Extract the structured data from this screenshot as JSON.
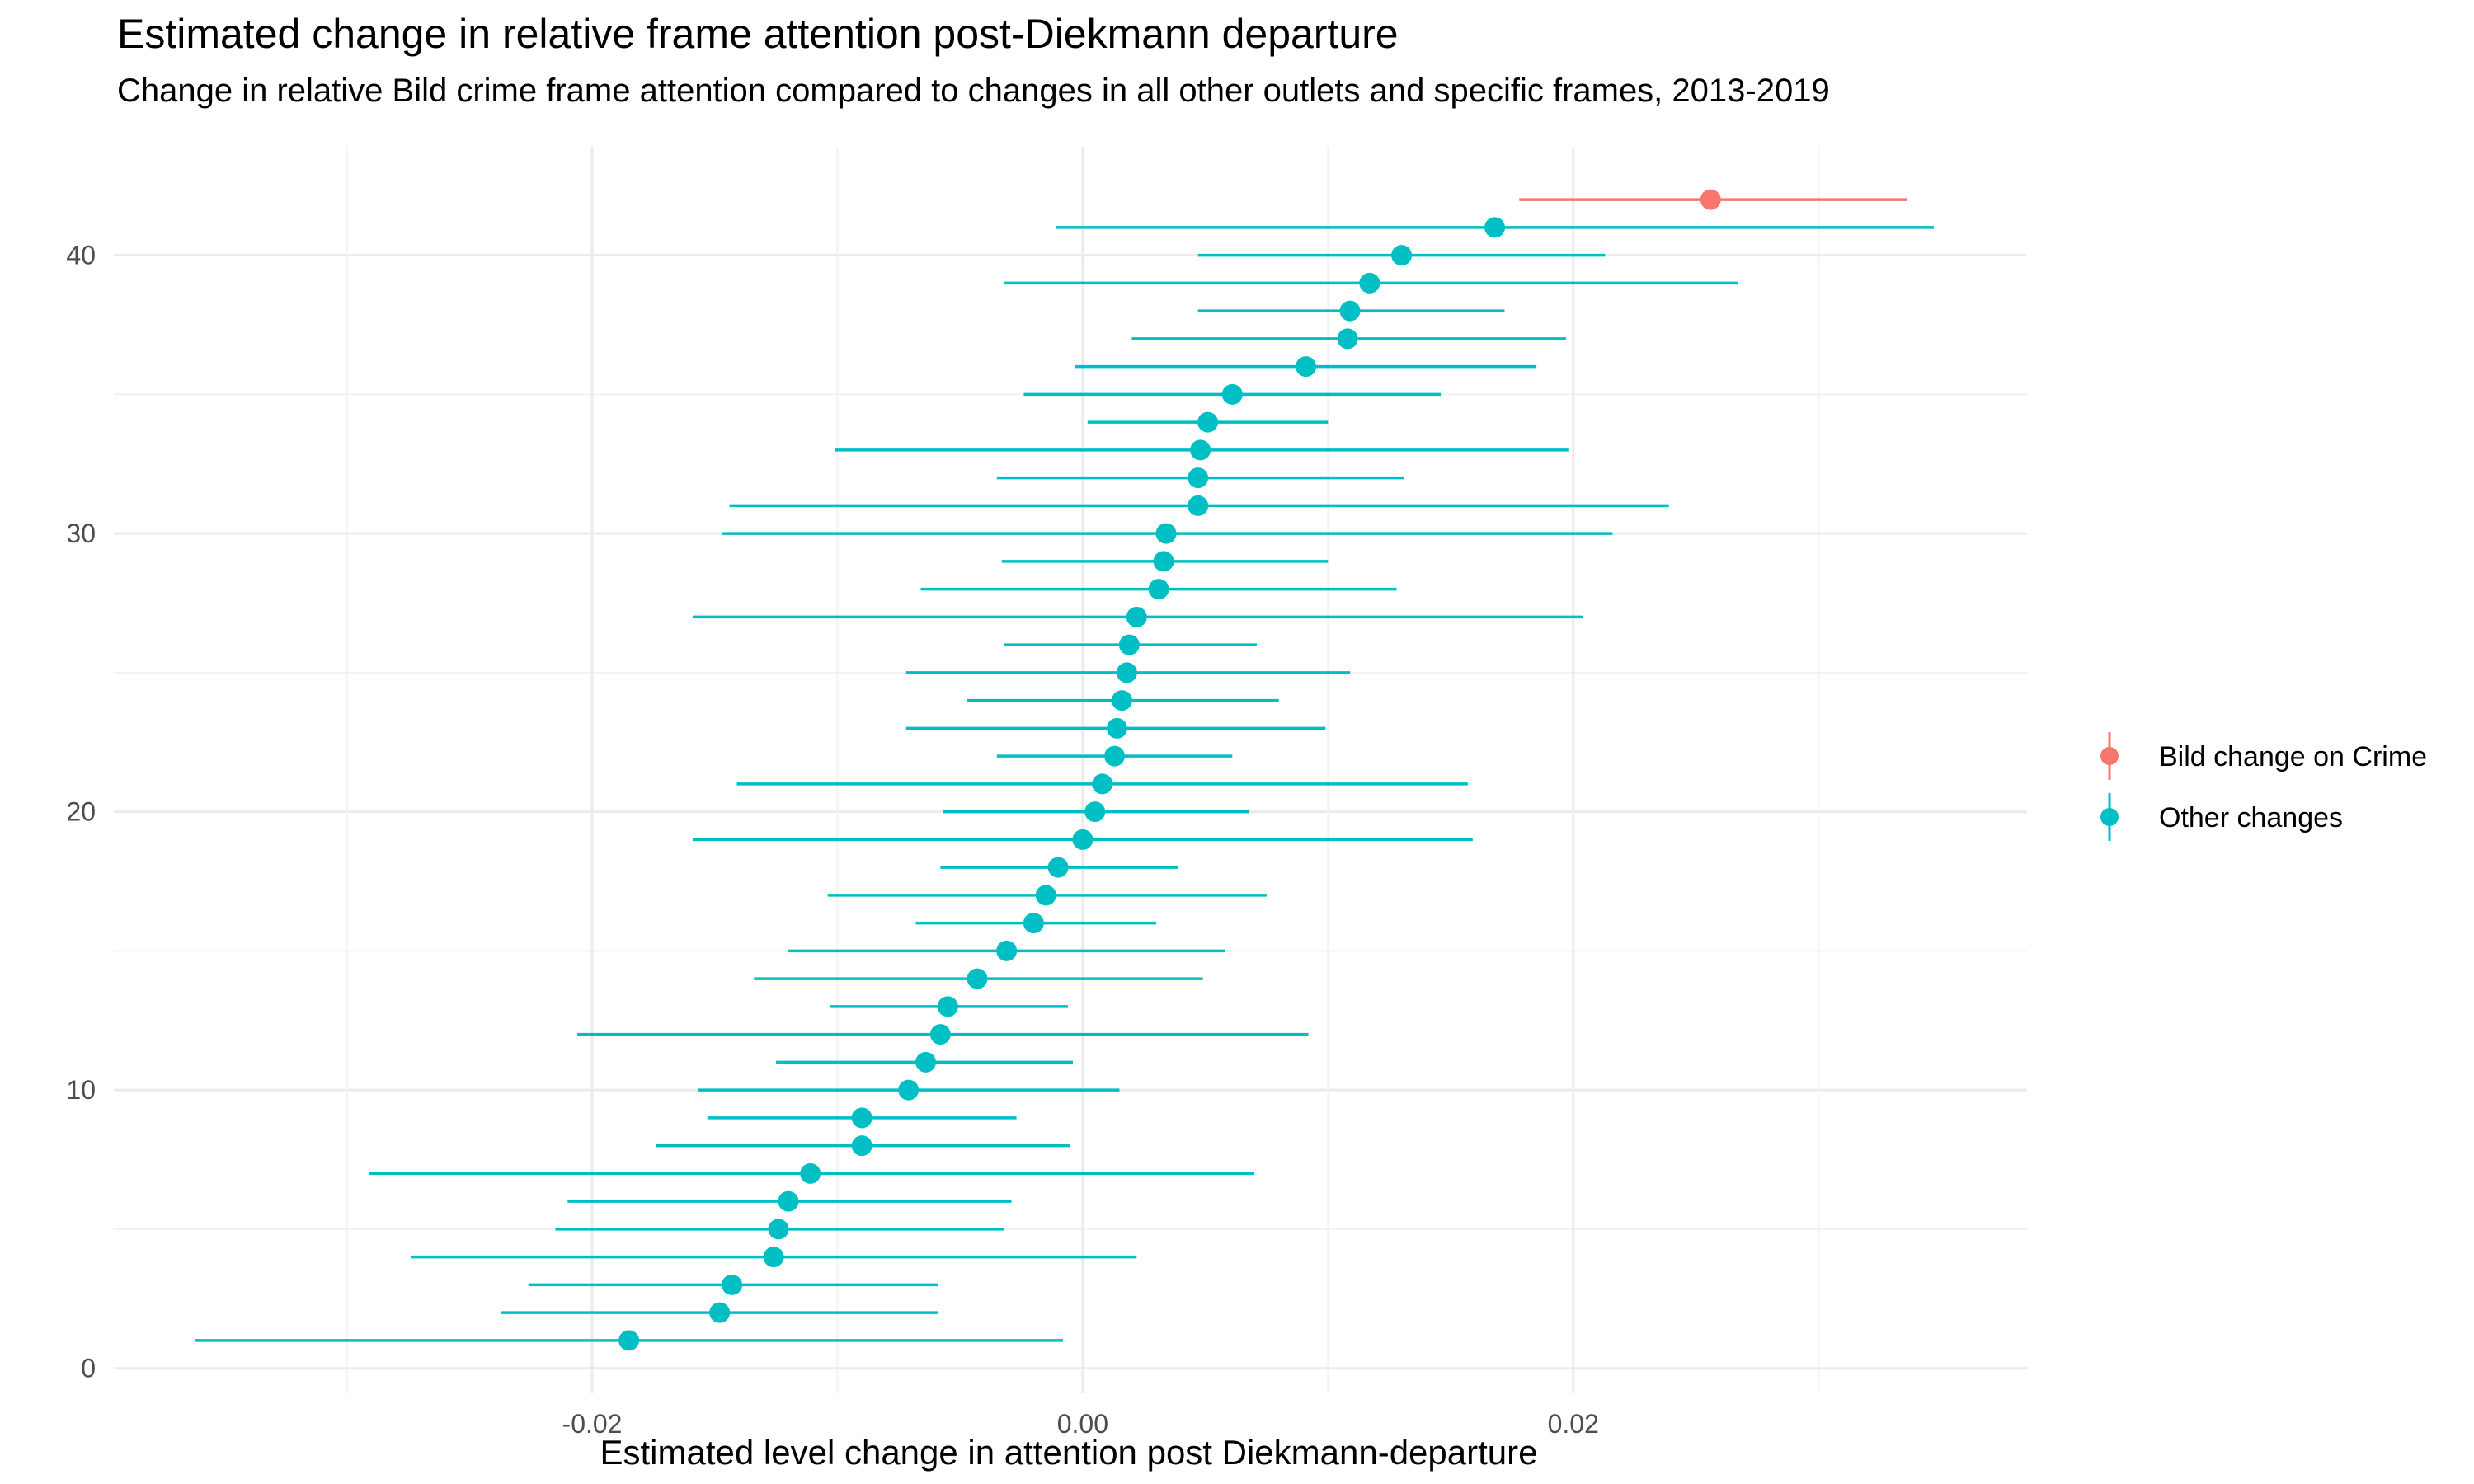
{
  "chart_data": {
    "type": "scatter",
    "title": "Estimated change in relative frame attention post-Diekmann departure",
    "subtitle": "Change in relative Bild crime frame attention compared to changes in all other outlets and specific frames, 2013-2019",
    "xlabel": "Estimated level change in attention post Diekmann-departure",
    "ylabel": "",
    "xlim": [
      -0.0395,
      0.0385
    ],
    "ylim": [
      -0.9,
      43.9
    ],
    "x_ticks": [
      -0.03,
      -0.02,
      -0.01,
      0.0,
      0.01,
      0.02,
      0.03
    ],
    "x_tick_labels": [
      {
        "value": -0.02,
        "label": "-0.02"
      },
      {
        "value": 0.0,
        "label": "0.00"
      },
      {
        "value": 0.02,
        "label": "0.02"
      }
    ],
    "y_tick_labels": [
      {
        "value": 0,
        "label": "0"
      },
      {
        "value": 10,
        "label": "10"
      },
      {
        "value": 20,
        "label": "20"
      },
      {
        "value": 30,
        "label": "30"
      },
      {
        "value": 40,
        "label": "40"
      }
    ],
    "y_minor_ticks": [
      5,
      15,
      25,
      35
    ],
    "grid": true,
    "legend_position": "right",
    "series": [
      {
        "name": "Bild change on Crime",
        "color": "#F8766D",
        "points": [
          {
            "y": 42,
            "x": 0.0256,
            "lo": 0.0178,
            "hi": 0.0336
          }
        ]
      },
      {
        "name": "Other changes",
        "color": "#00BFC4",
        "points": [
          {
            "y": 41,
            "x": 0.0168,
            "lo": -0.0011,
            "hi": 0.0347
          },
          {
            "y": 40,
            "x": 0.013,
            "lo": 0.0047,
            "hi": 0.0213
          },
          {
            "y": 39,
            "x": 0.0117,
            "lo": -0.0032,
            "hi": 0.0267
          },
          {
            "y": 38,
            "x": 0.0109,
            "lo": 0.0047,
            "hi": 0.0172
          },
          {
            "y": 37,
            "x": 0.0108,
            "lo": 0.002,
            "hi": 0.0197
          },
          {
            "y": 36,
            "x": 0.0091,
            "lo": -0.0003,
            "hi": 0.0185
          },
          {
            "y": 35,
            "x": 0.0061,
            "lo": -0.0024,
            "hi": 0.0146
          },
          {
            "y": 34,
            "x": 0.0051,
            "lo": 0.0002,
            "hi": 0.01
          },
          {
            "y": 33,
            "x": 0.0048,
            "lo": -0.0101,
            "hi": 0.0198
          },
          {
            "y": 32,
            "x": 0.0047,
            "lo": -0.0035,
            "hi": 0.0131
          },
          {
            "y": 31,
            "x": 0.0047,
            "lo": -0.0144,
            "hi": 0.0239
          },
          {
            "y": 30,
            "x": 0.0034,
            "lo": -0.0147,
            "hi": 0.0216
          },
          {
            "y": 29,
            "x": 0.0033,
            "lo": -0.0033,
            "hi": 0.01
          },
          {
            "y": 28,
            "x": 0.0031,
            "lo": -0.0066,
            "hi": 0.0128
          },
          {
            "y": 27,
            "x": 0.0022,
            "lo": -0.0159,
            "hi": 0.0204
          },
          {
            "y": 26,
            "x": 0.0019,
            "lo": -0.0032,
            "hi": 0.0071
          },
          {
            "y": 25,
            "x": 0.0018,
            "lo": -0.0072,
            "hi": 0.0109
          },
          {
            "y": 24,
            "x": 0.0016,
            "lo": -0.0047,
            "hi": 0.008
          },
          {
            "y": 23,
            "x": 0.0014,
            "lo": -0.0072,
            "hi": 0.0099
          },
          {
            "y": 22,
            "x": 0.0013,
            "lo": -0.0035,
            "hi": 0.0061
          },
          {
            "y": 21,
            "x": 0.0008,
            "lo": -0.0141,
            "hi": 0.0157
          },
          {
            "y": 20,
            "x": 0.0005,
            "lo": -0.0057,
            "hi": 0.0068
          },
          {
            "y": 19,
            "x": 0.0,
            "lo": -0.0159,
            "hi": 0.0159
          },
          {
            "y": 18,
            "x": -0.001,
            "lo": -0.0058,
            "hi": 0.0039
          },
          {
            "y": 17,
            "x": -0.0015,
            "lo": -0.0104,
            "hi": 0.0075
          },
          {
            "y": 16,
            "x": -0.002,
            "lo": -0.0068,
            "hi": 0.003
          },
          {
            "y": 15,
            "x": -0.0031,
            "lo": -0.012,
            "hi": 0.0058
          },
          {
            "y": 14,
            "x": -0.0043,
            "lo": -0.0134,
            "hi": 0.0049
          },
          {
            "y": 13,
            "x": -0.0055,
            "lo": -0.0103,
            "hi": -0.0006
          },
          {
            "y": 12,
            "x": -0.0058,
            "lo": -0.0206,
            "hi": 0.0092
          },
          {
            "y": 11,
            "x": -0.0064,
            "lo": -0.0125,
            "hi": -0.0004
          },
          {
            "y": 10,
            "x": -0.0071,
            "lo": -0.0157,
            "hi": 0.0015
          },
          {
            "y": 9,
            "x": -0.009,
            "lo": -0.0153,
            "hi": -0.0027
          },
          {
            "y": 8,
            "x": -0.009,
            "lo": -0.0174,
            "hi": -0.0005
          },
          {
            "y": 7,
            "x": -0.0111,
            "lo": -0.0291,
            "hi": 0.007
          },
          {
            "y": 6,
            "x": -0.012,
            "lo": -0.021,
            "hi": -0.0029
          },
          {
            "y": 5,
            "x": -0.0124,
            "lo": -0.0215,
            "hi": -0.0032
          },
          {
            "y": 4,
            "x": -0.0126,
            "lo": -0.0274,
            "hi": 0.0022
          },
          {
            "y": 3,
            "x": -0.0143,
            "lo": -0.0226,
            "hi": -0.0059
          },
          {
            "y": 2,
            "x": -0.0148,
            "lo": -0.0237,
            "hi": -0.0059
          },
          {
            "y": 1,
            "x": -0.0185,
            "lo": -0.0362,
            "hi": -0.0008
          }
        ]
      }
    ]
  }
}
